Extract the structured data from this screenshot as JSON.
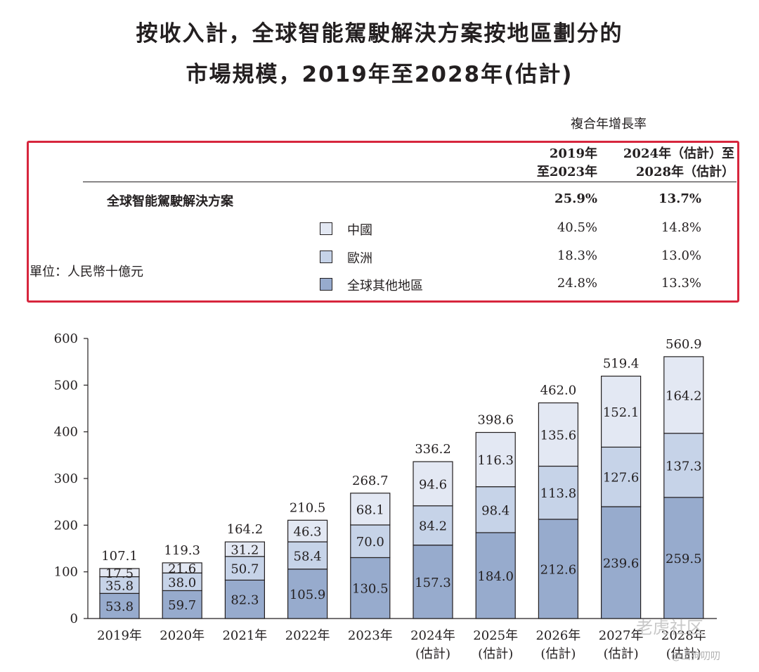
{
  "title": {
    "line1": "按收入計，全球智能駕駛解決方案按地區劃分的",
    "line2": "市場規模，2019年至2028年(估計)"
  },
  "cagr_table": {
    "header": "複合年增長率",
    "columns": [
      "2019年\n至2023年",
      "2024年（估計）至\n2028年（估計）"
    ],
    "rows": [
      {
        "label": "全球智能駕駛解決方案",
        "v1": "25.9%",
        "v2": "13.7%",
        "bold": true
      },
      {
        "label": "中國",
        "v1": "40.5%",
        "v2": "14.8%",
        "swatch": "#e3e8f3"
      },
      {
        "label": "歐洲",
        "v1": "18.3%",
        "v2": "13.0%",
        "swatch": "#c6d3e8"
      },
      {
        "label": "全球其他地區",
        "v1": "24.8%",
        "v2": "13.3%",
        "swatch": "#97abcd"
      }
    ]
  },
  "unit": "單位：人民幣十億元",
  "chart_data": {
    "type": "bar",
    "stacked": true,
    "categories": [
      "2019年",
      "2020年",
      "2021年",
      "2022年",
      "2023年",
      "2024年\n(估計)",
      "2025年\n(估計)",
      "2026年\n(估計)",
      "2027年\n(估計)",
      "2028年\n(估計)"
    ],
    "series": [
      {
        "name": "全球其他地區",
        "color": "#97abcd",
        "values": [
          53.8,
          59.7,
          82.3,
          105.9,
          130.5,
          157.3,
          184.0,
          212.6,
          239.6,
          259.5
        ]
      },
      {
        "name": "歐洲",
        "color": "#c6d3e8",
        "values": [
          35.8,
          38.0,
          50.7,
          58.4,
          70.0,
          84.2,
          98.4,
          113.8,
          127.6,
          137.3
        ]
      },
      {
        "name": "中國",
        "color": "#e3e8f3",
        "values": [
          17.5,
          21.6,
          31.2,
          46.3,
          68.1,
          94.6,
          116.3,
          135.6,
          152.1,
          164.2
        ]
      }
    ],
    "totals": [
      107.1,
      119.3,
      164.2,
      210.5,
      268.7,
      336.2,
      398.6,
      462.0,
      519.4,
      560.9
    ],
    "yticks": [
      0,
      100,
      200,
      300,
      400,
      500,
      600
    ],
    "ylim": [
      0,
      600
    ],
    "xlabel": "",
    "ylabel": ""
  },
  "watermark": {
    "main": "老虎社区",
    "sub": "@山狗叨叨"
  }
}
